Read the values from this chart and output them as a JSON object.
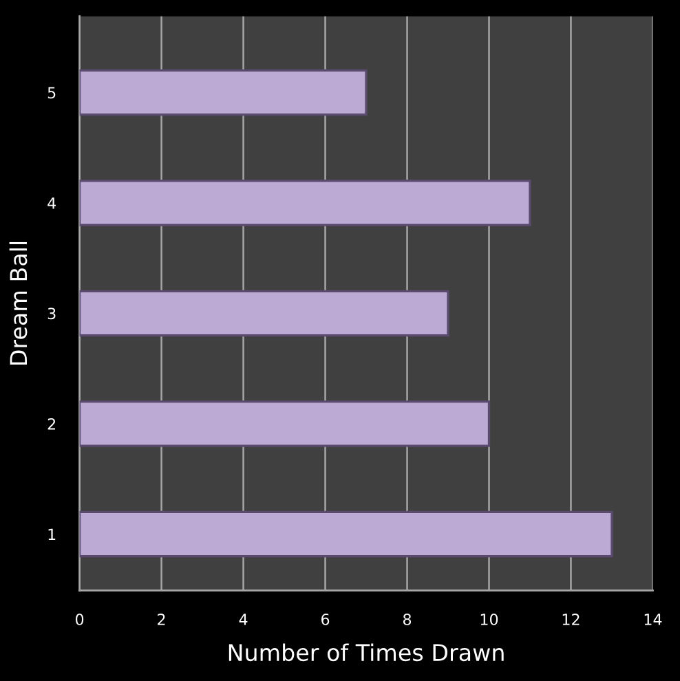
{
  "chart_data": {
    "type": "bar",
    "orientation": "horizontal",
    "xlabel": "Number of Times Drawn",
    "ylabel": "Dream Ball",
    "categories": [
      "5",
      "4",
      "3",
      "2",
      "1"
    ],
    "values": [
      7,
      11,
      9,
      10,
      13
    ],
    "color": "#bcaad4",
    "xlim": [
      0,
      14
    ],
    "xticks": [
      0,
      2,
      4,
      6,
      8,
      10,
      12,
      14
    ],
    "grid": "x",
    "legend": false
  }
}
